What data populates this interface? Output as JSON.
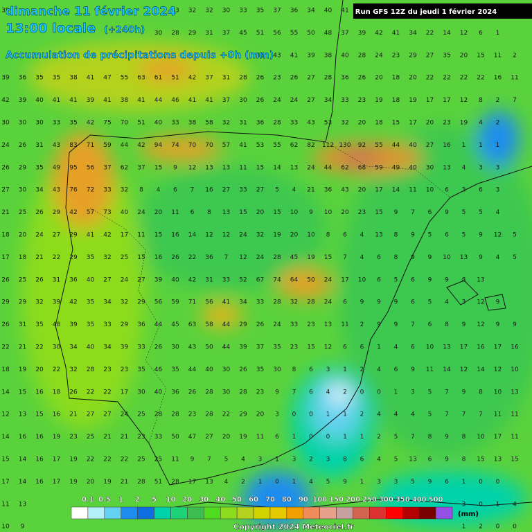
{
  "header": {
    "date": "dimanche 11 février 2024",
    "time": "13:00 locale",
    "lead": "(+240h)",
    "subtitle": "Accumulation de précipitations depuis +0h (mm)",
    "run": "Run GFS 12Z du jeudi 1 février 2024"
  },
  "grid": {
    "rows": [
      [
        39,
        null,
        null,
        null,
        null,
        null,
        null,
        null,
        null,
        null,
        33,
        32,
        32,
        30,
        33,
        35,
        37,
        36,
        34,
        40,
        41
      ],
      [
        null,
        null,
        null,
        null,
        null,
        null,
        null,
        null,
        null,
        30,
        28,
        29,
        31,
        37,
        45,
        51,
        56,
        55,
        50,
        48,
        37,
        39,
        42,
        41,
        34,
        22,
        14,
        12,
        6,
        1
      ],
      [
        null,
        null,
        null,
        null,
        null,
        null,
        null,
        null,
        null,
        null,
        null,
        null,
        null,
        null,
        null,
        38,
        43,
        41,
        39,
        38,
        40,
        28,
        24,
        23,
        29,
        27,
        35,
        20,
        15,
        11,
        2
      ],
      [
        39,
        36,
        35,
        35,
        38,
        41,
        47,
        55,
        63,
        61,
        51,
        42,
        37,
        31,
        28,
        26,
        23,
        26,
        27,
        28,
        36,
        26,
        20,
        18,
        20,
        22,
        22,
        22,
        22,
        16,
        11
      ],
      [
        42,
        39,
        40,
        41,
        41,
        39,
        41,
        38,
        41,
        44,
        46,
        41,
        41,
        37,
        30,
        26,
        24,
        24,
        27,
        34,
        33,
        23,
        19,
        18,
        19,
        17,
        17,
        12,
        8,
        2,
        7
      ],
      [
        30,
        30,
        30,
        33,
        35,
        42,
        75,
        70,
        51,
        40,
        33,
        38,
        58,
        32,
        31,
        36,
        28,
        33,
        43,
        53,
        32,
        20,
        18,
        15,
        17,
        20,
        23,
        19,
        4,
        2
      ],
      [
        24,
        26,
        31,
        43,
        83,
        71,
        59,
        44,
        42,
        94,
        74,
        70,
        70,
        57,
        41,
        53,
        55,
        62,
        82,
        112,
        130,
        92,
        55,
        44,
        40,
        27,
        16,
        1,
        1,
        1
      ],
      [
        26,
        29,
        35,
        49,
        95,
        56,
        37,
        62,
        37,
        15,
        9,
        12,
        13,
        13,
        11,
        15,
        14,
        13,
        24,
        44,
        62,
        68,
        59,
        49,
        40,
        30,
        13,
        4,
        3,
        3
      ],
      [
        27,
        30,
        34,
        43,
        76,
        72,
        33,
        32,
        8,
        4,
        6,
        7,
        16,
        27,
        33,
        27,
        5,
        4,
        21,
        36,
        43,
        20,
        17,
        14,
        11,
        10,
        6,
        3,
        6,
        3
      ],
      [
        21,
        25,
        26,
        29,
        42,
        57,
        73,
        40,
        24,
        20,
        11,
        6,
        8,
        13,
        15,
        20,
        15,
        10,
        9,
        10,
        20,
        23,
        15,
        9,
        7,
        6,
        9,
        5,
        5,
        4
      ],
      [
        18,
        20,
        24,
        27,
        29,
        41,
        42,
        17,
        11,
        15,
        16,
        14,
        12,
        12,
        24,
        32,
        19,
        20,
        10,
        8,
        6,
        4,
        13,
        8,
        9,
        5,
        6,
        5,
        9,
        12,
        5
      ],
      [
        17,
        18,
        21,
        22,
        29,
        35,
        32,
        25,
        15,
        16,
        26,
        22,
        36,
        7,
        12,
        24,
        28,
        45,
        19,
        15,
        7,
        4,
        6,
        8,
        9,
        9,
        10,
        13,
        9,
        4,
        5
      ],
      [
        26,
        25,
        26,
        31,
        36,
        40,
        27,
        24,
        27,
        39,
        40,
        42,
        31,
        33,
        52,
        67,
        74,
        64,
        50,
        24,
        17,
        10,
        6,
        5,
        6,
        9,
        9,
        8,
        13
      ],
      [
        29,
        29,
        32,
        39,
        42,
        35,
        34,
        32,
        29,
        56,
        59,
        71,
        56,
        41,
        34,
        33,
        28,
        32,
        28,
        24,
        6,
        9,
        9,
        9,
        6,
        5,
        4,
        3,
        12,
        9
      ],
      [
        26,
        31,
        35,
        48,
        39,
        35,
        33,
        29,
        36,
        44,
        45,
        63,
        58,
        44,
        29,
        26,
        24,
        33,
        23,
        13,
        11,
        2,
        9,
        9,
        7,
        6,
        8,
        9,
        12,
        9,
        9
      ],
      [
        22,
        21,
        22,
        30,
        34,
        40,
        34,
        39,
        33,
        26,
        30,
        43,
        50,
        44,
        39,
        37,
        35,
        23,
        15,
        12,
        6,
        6,
        1,
        4,
        6,
        10,
        13,
        17,
        16,
        17,
        16
      ],
      [
        18,
        19,
        20,
        22,
        32,
        28,
        23,
        23,
        35,
        46,
        35,
        44,
        40,
        30,
        26,
        35,
        30,
        8,
        6,
        3,
        1,
        2,
        4,
        6,
        9,
        11,
        14,
        12,
        14,
        12,
        10
      ],
      [
        14,
        15,
        16,
        18,
        26,
        22,
        22,
        17,
        30,
        40,
        36,
        26,
        28,
        30,
        28,
        23,
        9,
        7,
        6,
        4,
        2,
        0,
        0,
        1,
        3,
        5,
        7,
        9,
        8,
        10,
        13
      ],
      [
        12,
        13,
        15,
        16,
        21,
        27,
        27,
        24,
        25,
        28,
        28,
        23,
        28,
        22,
        29,
        20,
        3,
        0,
        0,
        1,
        1,
        2,
        4,
        4,
        4,
        5,
        7,
        7,
        7,
        11,
        11
      ],
      [
        14,
        16,
        16,
        19,
        23,
        25,
        21,
        21,
        23,
        33,
        50,
        47,
        27,
        20,
        19,
        11,
        6,
        1,
        0,
        0,
        1,
        1,
        2,
        5,
        7,
        8,
        9,
        8,
        10,
        17,
        11
      ],
      [
        15,
        14,
        16,
        17,
        19,
        22,
        22,
        22,
        25,
        25,
        11,
        9,
        7,
        5,
        4,
        3,
        1,
        3,
        2,
        3,
        8,
        6,
        4,
        5,
        13,
        6,
        9,
        8,
        15,
        13,
        15
      ],
      [
        17,
        14,
        16,
        17,
        19,
        20,
        19,
        21,
        28,
        51,
        28,
        17,
        13,
        4,
        2,
        1,
        0,
        1,
        4,
        5,
        9,
        1,
        3,
        3,
        5,
        9,
        6,
        1,
        0,
        0
      ],
      [
        11,
        13,
        null,
        null,
        null,
        null,
        null,
        null,
        null,
        null,
        null,
        null,
        null,
        null,
        null,
        null,
        null,
        null,
        null,
        null,
        null,
        null,
        null,
        null,
        null,
        null,
        null,
        3,
        0,
        1,
        4
      ],
      [
        10,
        9,
        null,
        null,
        null,
        null,
        null,
        null,
        null,
        null,
        null,
        null,
        null,
        null,
        null,
        null,
        null,
        null,
        null,
        null,
        null,
        null,
        null,
        null,
        null,
        null,
        null,
        1,
        2,
        0,
        0
      ]
    ]
  },
  "legend": {
    "labels": [
      "0.1",
      "0.5",
      "1",
      "2",
      "5",
      "10",
      "20",
      "30",
      "40",
      "50",
      "60",
      "70",
      "80",
      "90",
      "100",
      "150",
      "200",
      "250",
      "300",
      "350",
      "400",
      "500"
    ],
    "colors": [
      "#ffffff",
      "#b4f0fa",
      "#64d2f0",
      "#1e8cf0",
      "#0f6ee0",
      "#00d2aa",
      "#1ed27a",
      "#3cbe50",
      "#50dc1e",
      "#8cdc1e",
      "#b4d21e",
      "#d2d200",
      "#e6c800",
      "#f0a000",
      "#f08c5a",
      "#e6a08c",
      "#c8a0a0",
      "#d26450",
      "#dc3232",
      "#ff0000",
      "#b40000",
      "#780000",
      "#9650e6"
    ],
    "unit": "(mm)"
  },
  "footer": {
    "copyright": "Copyright 2024 Meteociel.fr"
  }
}
